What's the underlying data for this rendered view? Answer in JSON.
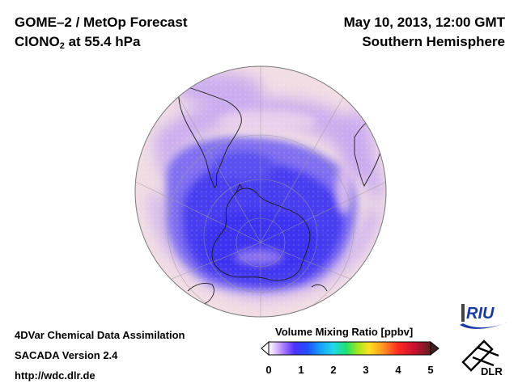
{
  "header": {
    "title_line1": "GOME–2 / MetOp Forecast",
    "species_prefix": "ClONO",
    "species_sub": "2",
    "species_suffix": " at 55.4 hPa",
    "datetime": "May 10, 2013, 12:00 GMT",
    "region": "Southern Hemisphere"
  },
  "info": {
    "line1": "4DVar Chemical Data Assimilation",
    "line2": "SACADA Version 2.4",
    "line3": "http://wdc.dlr.de"
  },
  "colorbar": {
    "title": "Volume Mixing Ratio [ppbv]",
    "min": 0,
    "max": 5,
    "ticks": [
      "0",
      "1",
      "2",
      "3",
      "4",
      "5"
    ],
    "colors": [
      "#ffffff",
      "#c080ff",
      "#6020ff",
      "#2040ff",
      "#1890ff",
      "#20d8e8",
      "#20e060",
      "#a8e820",
      "#ffe020",
      "#ff9020",
      "#ff2020",
      "#c01030",
      "#602020"
    ]
  },
  "logos": {
    "riu": "RIU",
    "dlr": "DLR"
  },
  "map": {
    "projection": "orthographic, south pole centered",
    "background_color": "#f0d8e0",
    "low_color": "#4a3cf0",
    "mid_color": "#b8a0f0"
  }
}
